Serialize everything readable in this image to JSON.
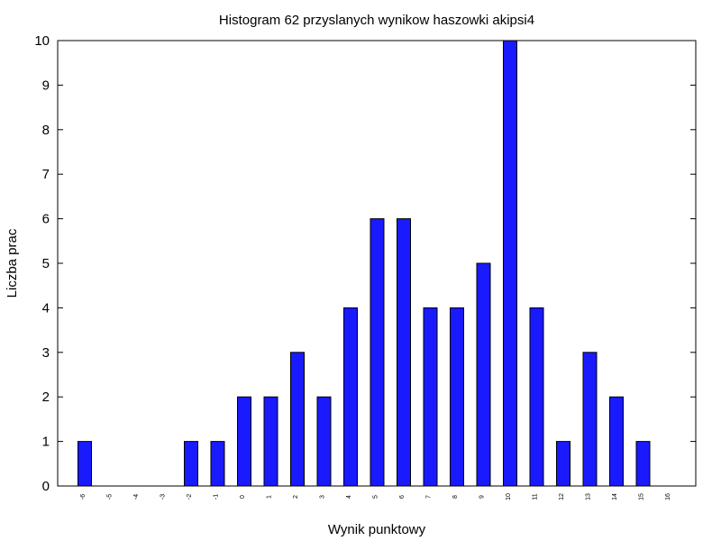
{
  "chart_data": {
    "type": "bar",
    "title": "Histogram 62 przyslanych wynikow haszowki akipsi4",
    "xlabel": "Wynik punktowy",
    "ylabel": "Liczba prac",
    "categories": [
      "-6",
      "-5",
      "-4",
      "-3",
      "-2",
      "-1",
      "0",
      "1",
      "2",
      "3",
      "4",
      "5",
      "6",
      "7",
      "8",
      "9",
      "10",
      "11",
      "12",
      "13",
      "14",
      "15",
      "16"
    ],
    "values": [
      1,
      0,
      0,
      0,
      1,
      1,
      2,
      2,
      3,
      2,
      4,
      6,
      6,
      4,
      4,
      5,
      10,
      4,
      1,
      3,
      2,
      1,
      0
    ],
    "ylim": [
      0,
      10
    ],
    "yticks": [
      0,
      1,
      2,
      3,
      4,
      5,
      6,
      7,
      8,
      9,
      10
    ],
    "grid": false,
    "bar_color": "#1a1aff",
    "bar_edge_color": "#000000"
  }
}
